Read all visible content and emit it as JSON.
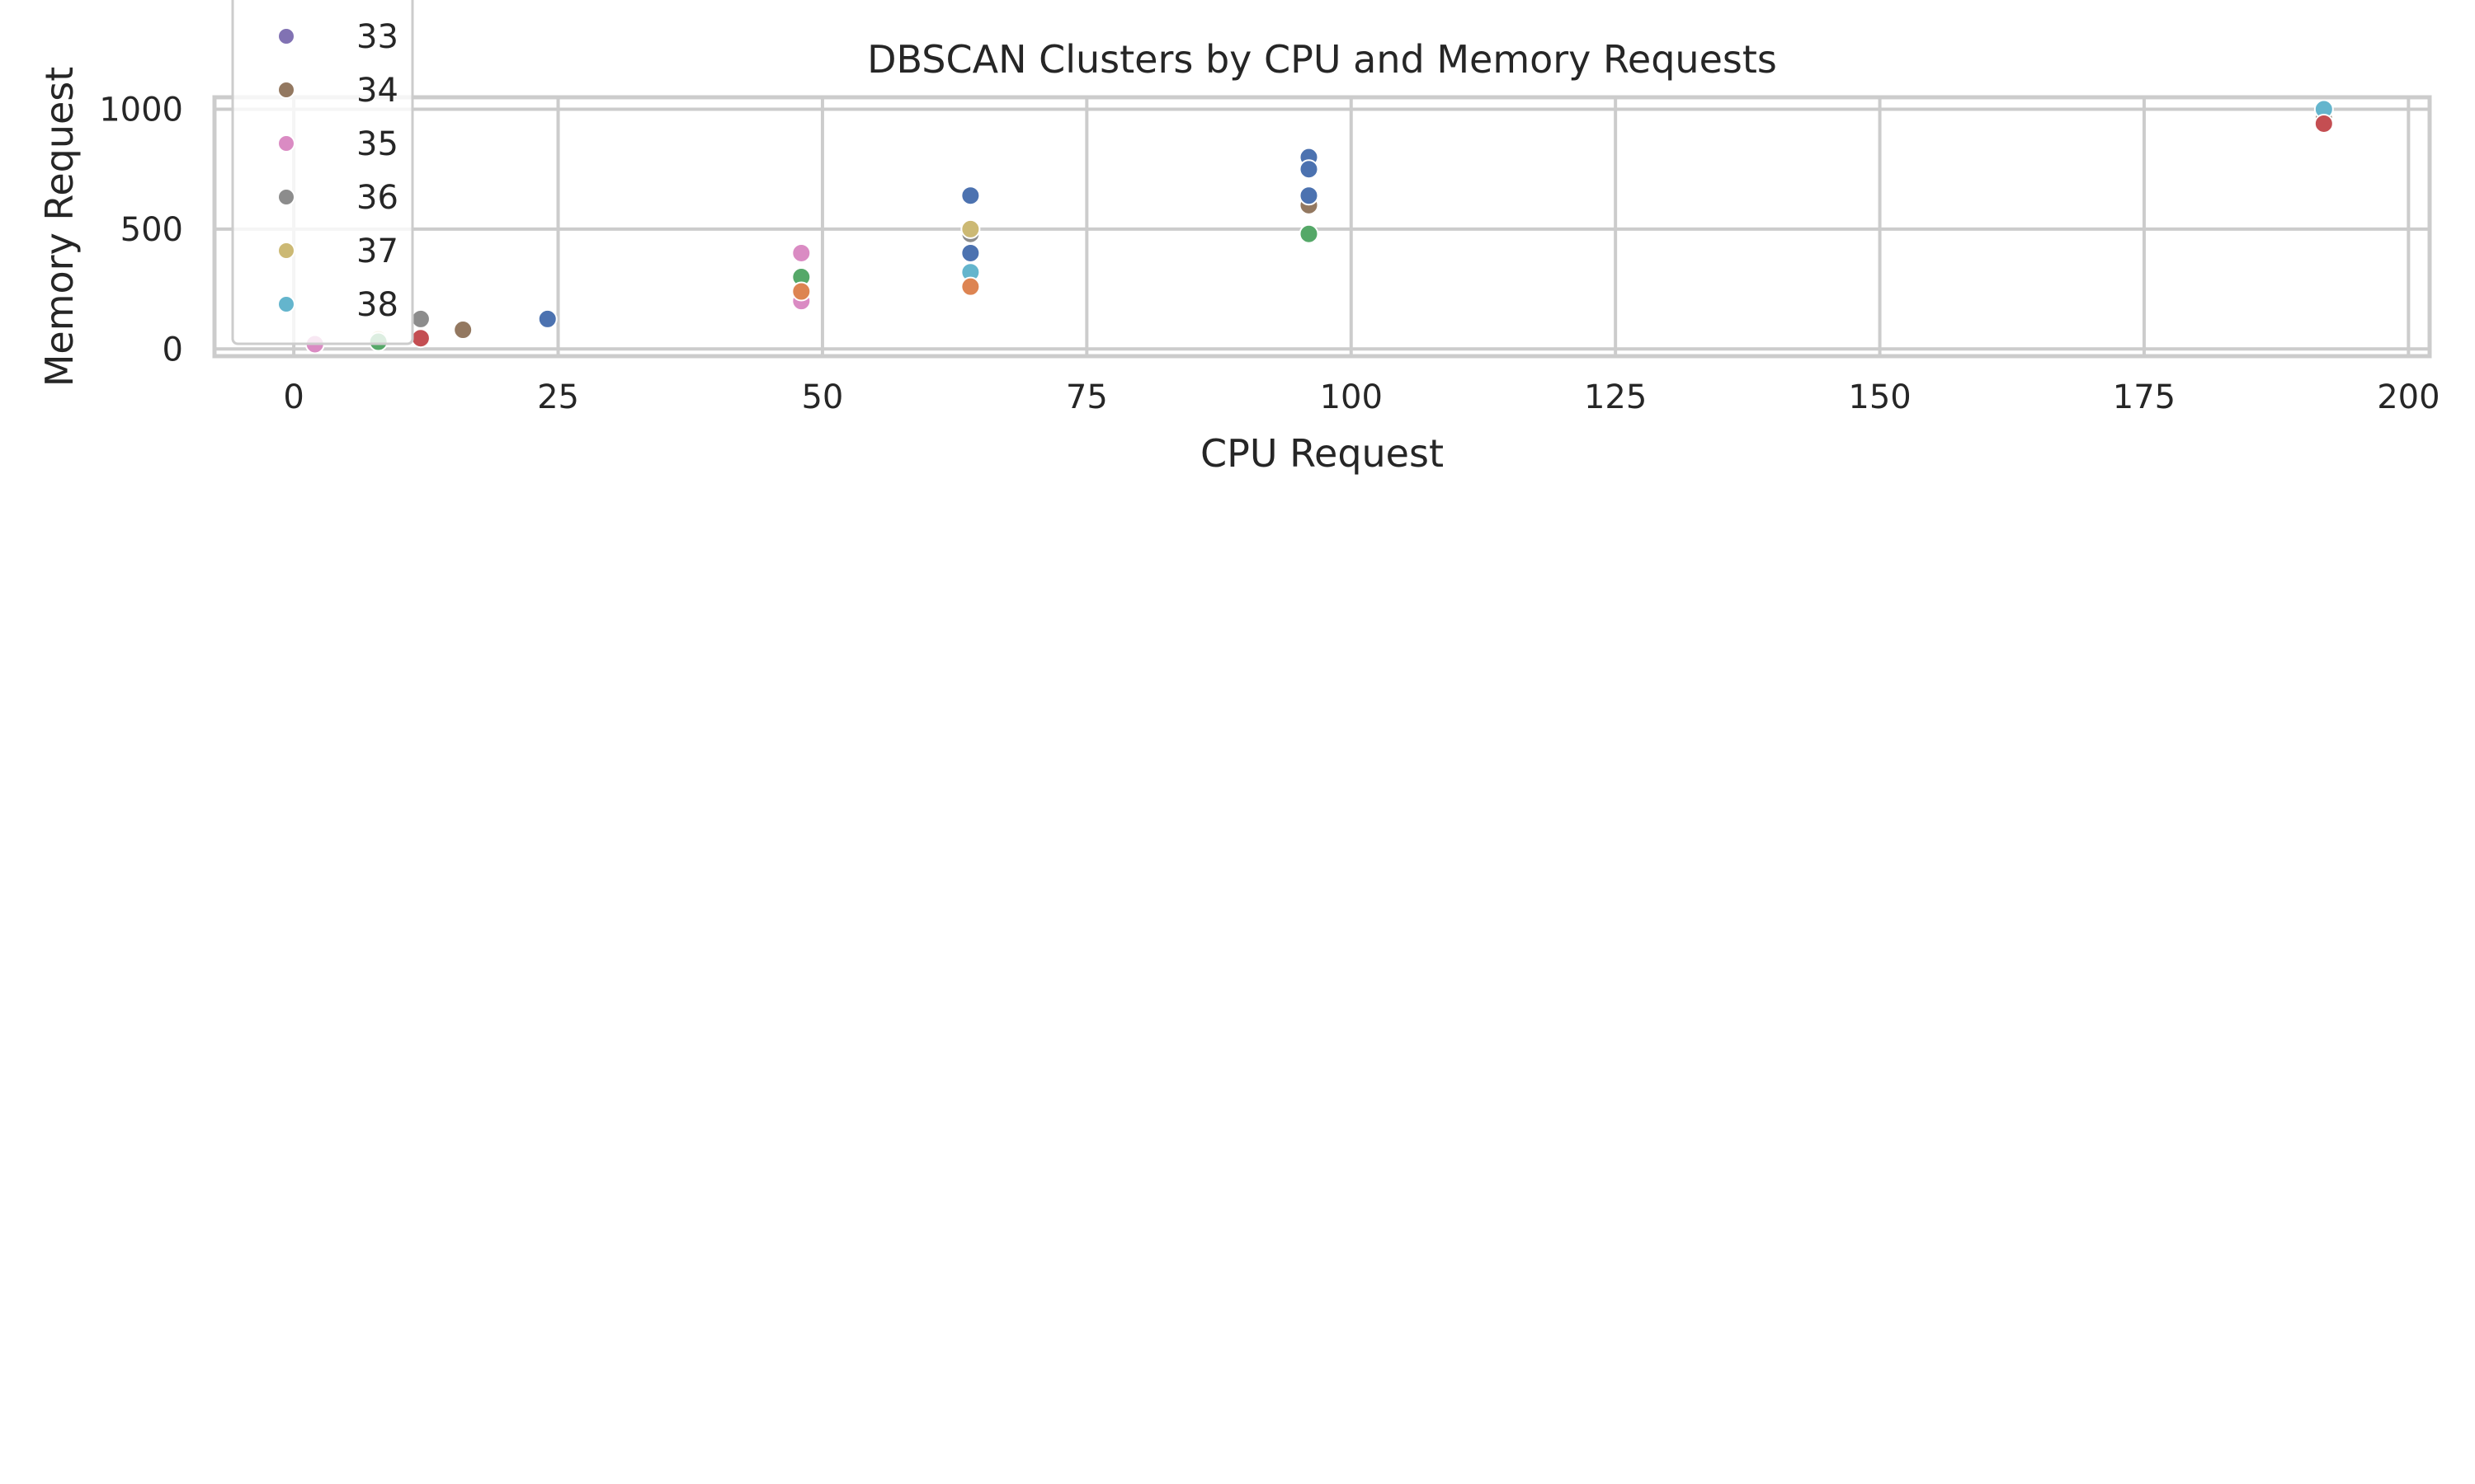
{
  "chart_data": {
    "type": "scatter",
    "title": "DBSCAN Clusters by CPU and Memory Requests",
    "xlabel": "CPU Request",
    "ylabel": "Memory Request",
    "xlim": [
      -7.5,
      202
    ],
    "ylim": [
      -30,
      1050
    ],
    "xticks": [
      0,
      25,
      50,
      75,
      100,
      125,
      150,
      175,
      200
    ],
    "yticks": [
      0,
      500,
      1000
    ],
    "grid": true,
    "legend_position": "upper-left",
    "series": [
      {
        "name": "33",
        "color": "#8172b3",
        "points": []
      },
      {
        "name": "34",
        "color": "#937860",
        "points": [
          [
            16,
            80
          ],
          [
            96,
            600
          ],
          [
            192,
            960
          ]
        ]
      },
      {
        "name": "35",
        "color": "#da8bc3",
        "points": [
          [
            2,
            20
          ],
          [
            48,
            400
          ],
          [
            48,
            200
          ]
        ]
      },
      {
        "name": "36",
        "color": "#8c8c8c",
        "points": [
          [
            12,
            125
          ],
          [
            64,
            480
          ]
        ]
      },
      {
        "name": "37",
        "color": "#ccb974",
        "points": [
          [
            8,
            40
          ],
          [
            64,
            500
          ]
        ]
      },
      {
        "name": "38",
        "color": "#64b5cd",
        "points": [
          [
            64,
            320
          ],
          [
            192,
            1000
          ]
        ]
      },
      {
        "name": "",
        "color": "#4c72b0",
        "points": [
          [
            24,
            125
          ],
          [
            64,
            640
          ],
          [
            64,
            400
          ],
          [
            96,
            800
          ],
          [
            96,
            750
          ],
          [
            96,
            640
          ]
        ]
      },
      {
        "name": "",
        "color": "#55a868",
        "points": [
          [
            48,
            300
          ],
          [
            96,
            480
          ],
          [
            8,
            30
          ]
        ]
      },
      {
        "name": "",
        "color": "#dd8452",
        "points": [
          [
            48,
            240
          ],
          [
            64,
            260
          ]
        ]
      },
      {
        "name": "",
        "color": "#c44e52",
        "points": [
          [
            12,
            45
          ],
          [
            192,
            940
          ]
        ]
      }
    ]
  }
}
